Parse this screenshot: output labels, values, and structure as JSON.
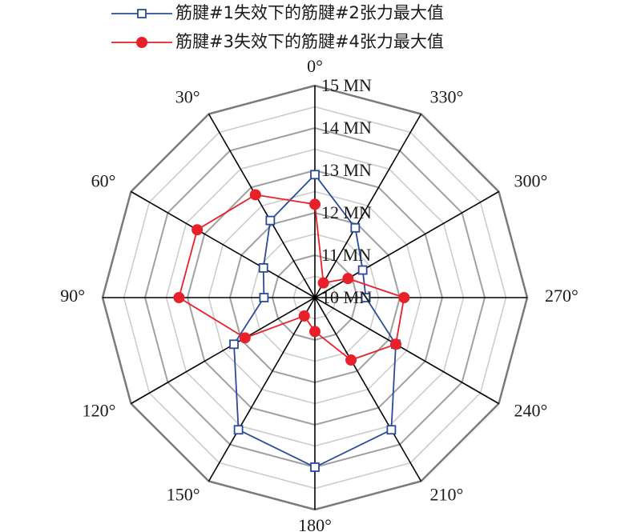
{
  "chart_data": {
    "type": "radar",
    "radial_axis": {
      "min": 10,
      "max": 15,
      "unit": "MN",
      "ticks": [
        10,
        11,
        12,
        13,
        14,
        15
      ],
      "tick_labels": [
        "10 MN",
        "11 MN",
        "12 MN",
        "13 MN",
        "14 MN",
        "15 MN"
      ],
      "minor_rings": [
        10.5,
        11.5,
        12.5,
        13.5,
        14.5
      ]
    },
    "angles": [
      0,
      30,
      60,
      90,
      120,
      150,
      180,
      210,
      240,
      270,
      300,
      330
    ],
    "angle_labels": [
      "0°",
      "30°",
      "60°",
      "90°",
      "120°",
      "150°",
      "180°",
      "210°",
      "240°",
      "270°",
      "300°",
      "330°"
    ],
    "direction": "counterclockwise",
    "zero_location": "top",
    "legend_position": "top",
    "series": [
      {
        "name": "筋腱#1失效下的筋腱#2张力最大值",
        "color": "#2b4a9b",
        "marker": "open-square",
        "values": [
          12.9,
          12.1,
          11.4,
          11.2,
          12.2,
          13.6,
          14.0,
          13.6,
          12.2,
          11.2,
          11.3,
          11.9
        ]
      },
      {
        "name": "筋腱#3失效下的筋腱#4张力最大值",
        "color": "#e8202a",
        "marker": "filled-circle",
        "values": [
          12.2,
          12.8,
          13.2,
          13.2,
          11.9,
          10.5,
          10.8,
          11.7,
          12.2,
          12.1,
          10.9,
          10.4
        ]
      }
    ]
  }
}
